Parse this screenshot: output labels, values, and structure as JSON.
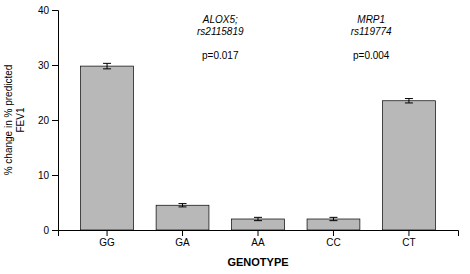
{
  "chart_data": {
    "type": "bar",
    "categories": [
      "GG",
      "GA",
      "AA",
      "CC",
      "CT"
    ],
    "values": [
      29.8,
      4.5,
      2.0,
      2.0,
      23.5
    ],
    "errors": [
      0.5,
      0.3,
      0.3,
      0.3,
      0.4
    ],
    "color": "#b8b8b8",
    "x_label": "GENOTYPE",
    "y_label": "% change in % predicted\nFEV1",
    "ylim": [
      0,
      40
    ],
    "yticks": [
      0,
      10,
      20,
      30,
      40
    ],
    "annotations": [
      "ALOX5;\nrs2115819",
      "p=0.017",
      "MRP1\nrs119774",
      "p=0.004"
    ]
  }
}
